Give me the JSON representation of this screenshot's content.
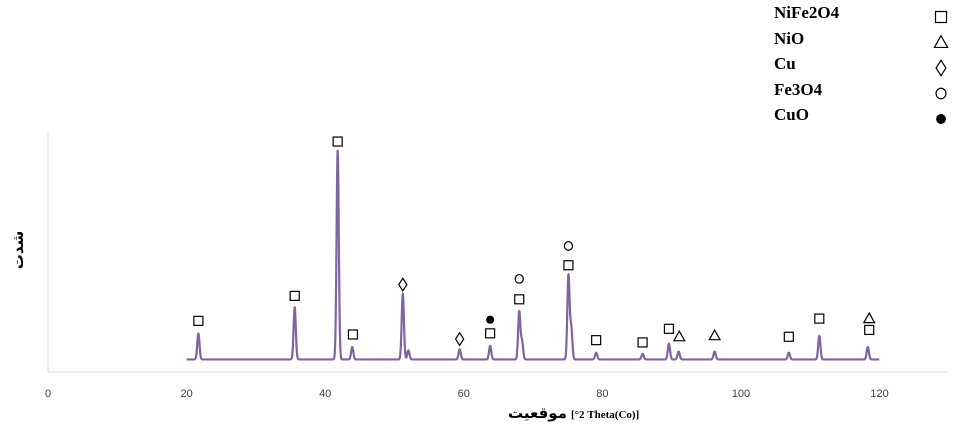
{
  "chart_data": {
    "type": "line",
    "ylabel": "شدت",
    "xlabel_fa": "موقعیت",
    "xlabel_en": "[°2 Theta(Co)]",
    "xlim": [
      0,
      130
    ],
    "x_ticks": [
      0,
      20,
      40,
      60,
      80,
      100,
      120
    ],
    "y_relative_scale": true,
    "line_color": "#8064a2",
    "baseline": 2,
    "x_start": 20.0,
    "x_end": 120.0,
    "peaks": [
      {
        "x": 21.7,
        "y": 11.5
      },
      {
        "x": 35.6,
        "y": 23.0
      },
      {
        "x": 41.8,
        "y": 92.0
      },
      {
        "x": 43.9,
        "y": 5.5
      },
      {
        "x": 51.2,
        "y": 29.0
      },
      {
        "x": 52.0,
        "y": 4.0
      },
      {
        "x": 59.4,
        "y": 4.5
      },
      {
        "x": 63.8,
        "y": 6.0
      },
      {
        "x": 68.0,
        "y": 21.0
      },
      {
        "x": 68.4,
        "y": 8.0
      },
      {
        "x": 75.1,
        "y": 37.0
      },
      {
        "x": 75.5,
        "y": 14.0
      },
      {
        "x": 79.1,
        "y": 3.0
      },
      {
        "x": 85.8,
        "y": 2.5
      },
      {
        "x": 89.6,
        "y": 7.0
      },
      {
        "x": 91.0,
        "y": 3.5
      },
      {
        "x": 96.2,
        "y": 3.5
      },
      {
        "x": 106.9,
        "y": 3.0
      },
      {
        "x": 111.3,
        "y": 10.5
      },
      {
        "x": 118.3,
        "y": 5.5
      }
    ],
    "phases": [
      {
        "name": "NiFe2O4",
        "symbol": "square"
      },
      {
        "name": "NiO",
        "symbol": "triangle"
      },
      {
        "name": "Cu",
        "symbol": "diamond"
      },
      {
        "name": "Fe3O4",
        "symbol": "circle"
      },
      {
        "name": "CuO",
        "symbol": "dot"
      }
    ],
    "markers": [
      {
        "x": 21.7,
        "y": 19,
        "symbol": "square"
      },
      {
        "x": 35.6,
        "y": 30,
        "symbol": "square"
      },
      {
        "x": 41.8,
        "y": 98,
        "symbol": "square"
      },
      {
        "x": 44.0,
        "y": 13,
        "symbol": "square"
      },
      {
        "x": 51.2,
        "y": 35,
        "symbol": "diamond"
      },
      {
        "x": 59.4,
        "y": 11,
        "symbol": "diamond"
      },
      {
        "x": 63.8,
        "y": 13.5,
        "symbol": "square"
      },
      {
        "x": 63.8,
        "y": 19.5,
        "symbol": "dot"
      },
      {
        "x": 68.0,
        "y": 28.5,
        "symbol": "square"
      },
      {
        "x": 68.0,
        "y": 37.5,
        "symbol": "circle"
      },
      {
        "x": 75.1,
        "y": 43.5,
        "symbol": "square"
      },
      {
        "x": 75.1,
        "y": 52,
        "symbol": "circle"
      },
      {
        "x": 79.1,
        "y": 10.5,
        "symbol": "square"
      },
      {
        "x": 85.8,
        "y": 9.5,
        "symbol": "square"
      },
      {
        "x": 89.6,
        "y": 15.5,
        "symbol": "square"
      },
      {
        "x": 91.1,
        "y": 12,
        "symbol": "triangle"
      },
      {
        "x": 96.2,
        "y": 12.5,
        "symbol": "triangle"
      },
      {
        "x": 106.9,
        "y": 12,
        "symbol": "square"
      },
      {
        "x": 111.3,
        "y": 20,
        "symbol": "square"
      },
      {
        "x": 118.5,
        "y": 20,
        "symbol": "triangle"
      },
      {
        "x": 118.5,
        "y": 15,
        "symbol": "square"
      }
    ]
  }
}
